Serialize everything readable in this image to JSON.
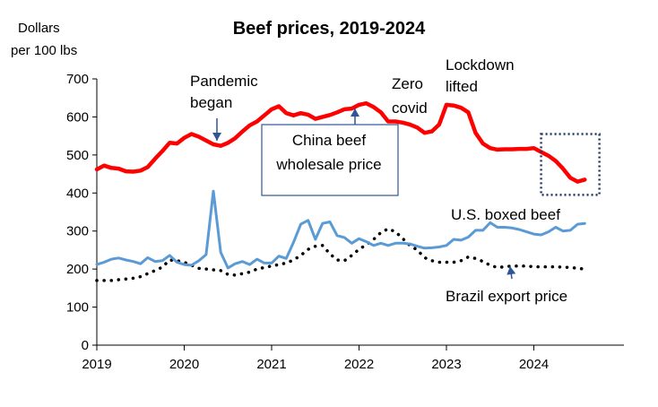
{
  "chart_data": {
    "type": "line",
    "title": "Beef prices, 2019-2024",
    "ylabel": "Dollars per 100 lbs",
    "ylabel_lines": [
      "Dollars",
      "per 100 lbs"
    ],
    "xlabel": "",
    "ylim": [
      0,
      700
    ],
    "xlim": [
      2019,
      2024.917
    ],
    "yticks": [
      "0",
      "100",
      "200",
      "300",
      "400",
      "500",
      "600",
      "700"
    ],
    "xticks": [
      "2019",
      "2020",
      "2021",
      "2022",
      "2023",
      "2024"
    ],
    "grid": false,
    "legend": "none (series labelled directly)",
    "series": [
      {
        "name": "China beef wholesale price",
        "color": "#ff0000",
        "style": "solid-thick",
        "x": [
          2019.0,
          2019.083,
          2019.167,
          2019.25,
          2019.333,
          2019.417,
          2019.5,
          2019.583,
          2019.667,
          2019.75,
          2019.833,
          2019.917,
          2020.0,
          2020.083,
          2020.167,
          2020.25,
          2020.333,
          2020.417,
          2020.5,
          2020.583,
          2020.667,
          2020.75,
          2020.833,
          2020.917,
          2021.0,
          2021.083,
          2021.167,
          2021.25,
          2021.333,
          2021.417,
          2021.5,
          2021.583,
          2021.667,
          2021.75,
          2021.833,
          2021.917,
          2022.0,
          2022.083,
          2022.167,
          2022.25,
          2022.333,
          2022.417,
          2022.5,
          2022.583,
          2022.667,
          2022.75,
          2022.833,
          2022.917,
          2023.0,
          2023.083,
          2023.167,
          2023.25,
          2023.333,
          2023.417,
          2023.5,
          2023.583,
          2023.667,
          2023.75,
          2023.833,
          2023.917,
          2024.0,
          2024.083,
          2024.167,
          2024.25,
          2024.333,
          2024.417,
          2024.5,
          2024.583
        ],
        "values": [
          462,
          472,
          466,
          464,
          457,
          456,
          459,
          468,
          490,
          510,
          532,
          530,
          545,
          555,
          548,
          538,
          528,
          524,
          532,
          544,
          562,
          578,
          588,
          604,
          620,
          628,
          610,
          604,
          610,
          606,
          595,
          600,
          605,
          612,
          620,
          622,
          632,
          636,
          626,
          612,
          588,
          588,
          585,
          580,
          572,
          558,
          562,
          580,
          632,
          630,
          624,
          612,
          558,
          530,
          518,
          514,
          515,
          515,
          516,
          516,
          518,
          508,
          498,
          484,
          464,
          440,
          430,
          435
        ]
      },
      {
        "name": "U.S. boxed beef",
        "color": "#5b9bd5",
        "style": "solid",
        "x": [
          2019.0,
          2019.083,
          2019.167,
          2019.25,
          2019.333,
          2019.417,
          2019.5,
          2019.583,
          2019.667,
          2019.75,
          2019.833,
          2019.917,
          2020.0,
          2020.083,
          2020.167,
          2020.25,
          2020.333,
          2020.417,
          2020.5,
          2020.583,
          2020.667,
          2020.75,
          2020.833,
          2020.917,
          2021.0,
          2021.083,
          2021.167,
          2021.25,
          2021.333,
          2021.417,
          2021.5,
          2021.583,
          2021.667,
          2021.75,
          2021.833,
          2021.917,
          2022.0,
          2022.083,
          2022.167,
          2022.25,
          2022.333,
          2022.417,
          2022.5,
          2022.583,
          2022.667,
          2022.75,
          2022.833,
          2022.917,
          2023.0,
          2023.083,
          2023.167,
          2023.25,
          2023.333,
          2023.417,
          2023.5,
          2023.583,
          2023.667,
          2023.75,
          2023.833,
          2023.917,
          2024.0,
          2024.083,
          2024.167,
          2024.25,
          2024.333,
          2024.417,
          2024.5,
          2024.583
        ],
        "values": [
          212,
          218,
          226,
          229,
          224,
          220,
          214,
          230,
          220,
          222,
          236,
          218,
          212,
          210,
          222,
          238,
          405,
          244,
          203,
          214,
          220,
          212,
          226,
          216,
          216,
          234,
          228,
          270,
          318,
          328,
          278,
          320,
          324,
          288,
          283,
          268,
          280,
          272,
          262,
          268,
          262,
          268,
          268,
          266,
          260,
          255,
          256,
          258,
          262,
          278,
          276,
          284,
          302,
          302,
          322,
          310,
          310,
          308,
          304,
          298,
          292,
          290,
          298,
          310,
          300,
          302,
          318,
          320
        ]
      },
      {
        "name": "Brazil export price",
        "color": "#000000",
        "style": "dotted",
        "x": [
          2019.0,
          2019.083,
          2019.167,
          2019.25,
          2019.333,
          2019.417,
          2019.5,
          2019.583,
          2019.667,
          2019.75,
          2019.833,
          2019.917,
          2020.0,
          2020.083,
          2020.167,
          2020.25,
          2020.333,
          2020.417,
          2020.5,
          2020.583,
          2020.667,
          2020.75,
          2020.833,
          2020.917,
          2021.0,
          2021.083,
          2021.167,
          2021.25,
          2021.333,
          2021.417,
          2021.5,
          2021.583,
          2021.667,
          2021.75,
          2021.833,
          2021.917,
          2022.0,
          2022.083,
          2022.167,
          2022.25,
          2022.333,
          2022.417,
          2022.5,
          2022.583,
          2022.667,
          2022.75,
          2022.833,
          2022.917,
          2023.0,
          2023.083,
          2023.167,
          2023.25,
          2023.333,
          2023.417,
          2023.5,
          2023.583,
          2023.667,
          2023.75,
          2023.833,
          2023.917,
          2024.0,
          2024.083,
          2024.167,
          2024.25,
          2024.333,
          2024.417,
          2024.5,
          2024.583
        ],
        "values": [
          170,
          170,
          170,
          172,
          174,
          176,
          180,
          188,
          196,
          205,
          224,
          222,
          218,
          210,
          202,
          200,
          198,
          196,
          186,
          184,
          188,
          192,
          200,
          204,
          208,
          212,
          216,
          224,
          236,
          252,
          260,
          262,
          240,
          224,
          222,
          236,
          252,
          264,
          278,
          296,
          306,
          298,
          280,
          262,
          250,
          230,
          222,
          218,
          218,
          218,
          222,
          232,
          228,
          220,
          210,
          204,
          206,
          208,
          208,
          208,
          206,
          206,
          206,
          206,
          205,
          204,
          202,
          200
        ]
      }
    ],
    "annotations": [
      {
        "key": "pandemic",
        "lines": [
          "Pandemic",
          "began"
        ],
        "x": 2020.417,
        "y": 524
      },
      {
        "key": "zero_covid",
        "lines": [
          "Zero",
          "covid"
        ],
        "x": 2022.833,
        "y": 600
      },
      {
        "key": "lockdown",
        "lines": [
          "Lockdown",
          "lifted"
        ],
        "x": 2024.0,
        "y": 530
      },
      {
        "key": "china_label",
        "lines": [
          "China beef",
          "wholesale price"
        ],
        "x": 2021.917,
        "y": 620
      },
      {
        "key": "us_label",
        "lines": [
          "U.S. boxed beef"
        ],
        "x": 2024.583,
        "y": 325
      },
      {
        "key": "brazil_label",
        "lines": [
          "Brazil export price"
        ],
        "x": 2023.667,
        "y": 212
      }
    ],
    "highlight_box": {
      "x_range": [
        2024.083,
        2024.75
      ],
      "y_range": [
        395,
        555
      ],
      "style": "dotted"
    }
  }
}
